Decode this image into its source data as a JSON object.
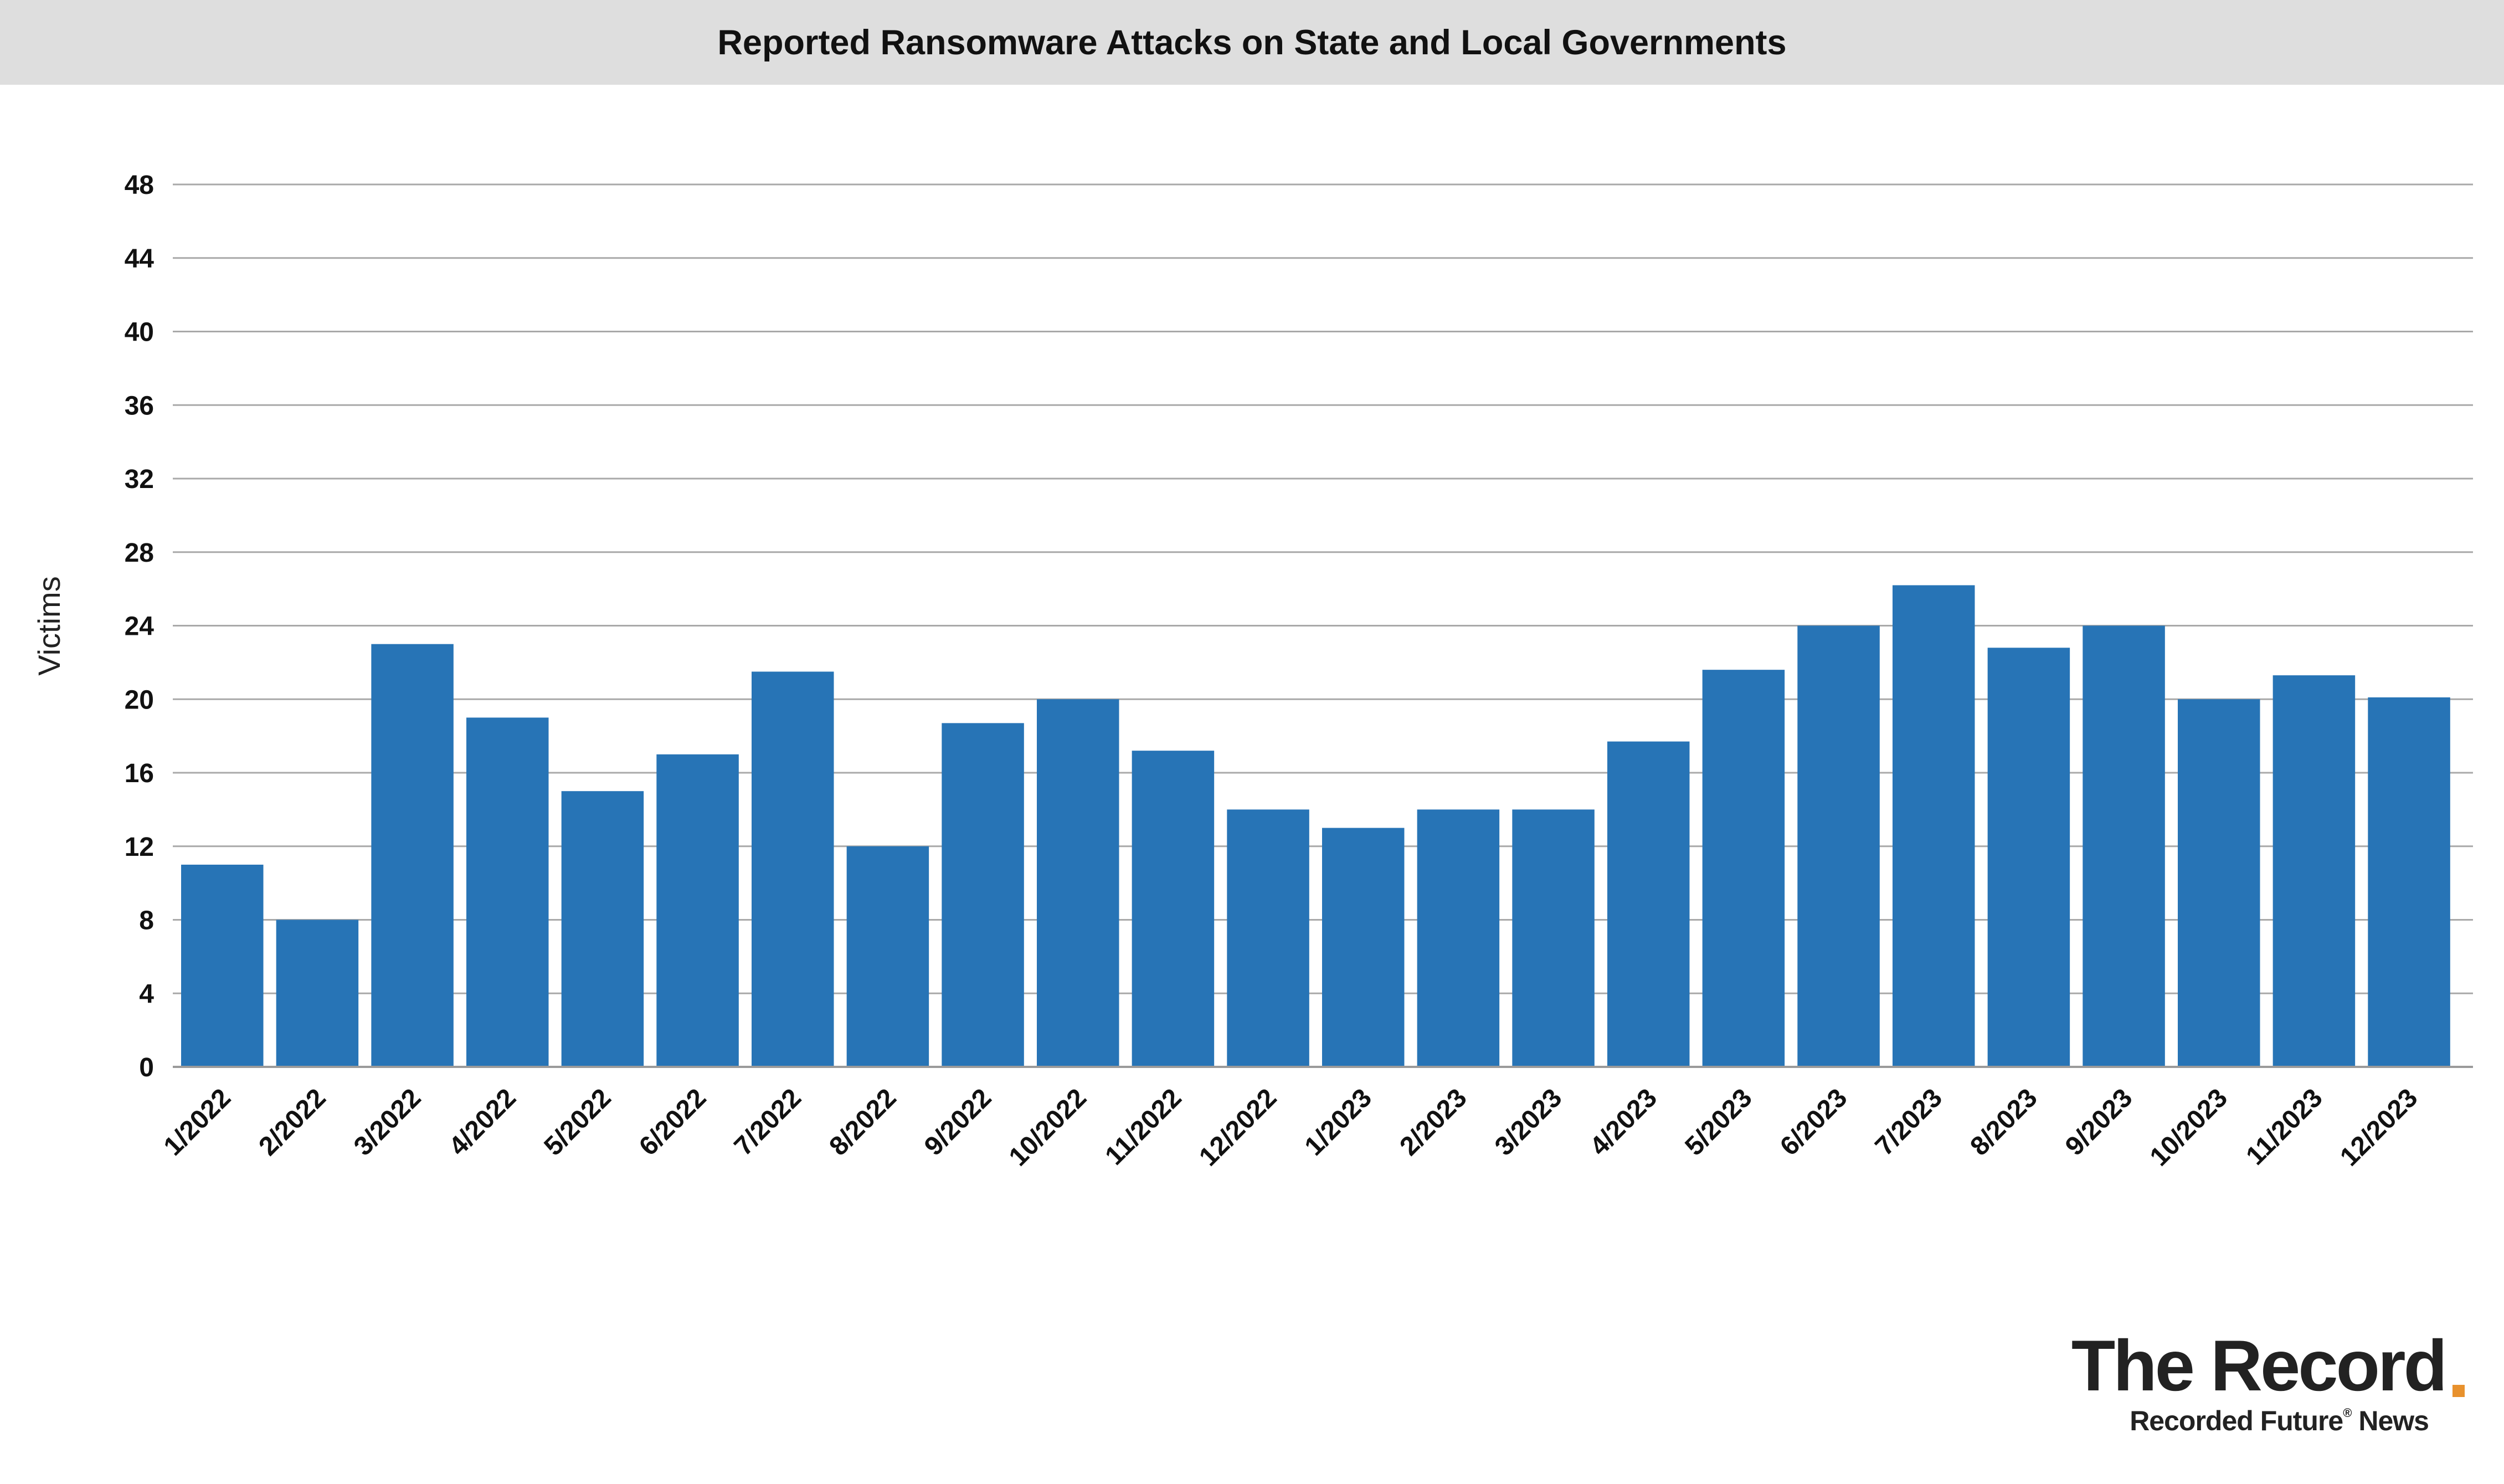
{
  "chart_data": {
    "type": "bar",
    "title": "Reported Ransomware Attacks on State and Local Governments",
    "xlabel": "",
    "ylabel": "Victims",
    "ylim": [
      0,
      48
    ],
    "yticks": [
      0,
      4,
      8,
      12,
      16,
      20,
      24,
      28,
      32,
      36,
      40,
      44,
      48
    ],
    "grid": true,
    "categories": [
      "1/2022",
      "2/2022",
      "3/2022",
      "4/2022",
      "5/2022",
      "6/2022",
      "7/2022",
      "8/2022",
      "9/2022",
      "10/2022",
      "11/2022",
      "12/2022",
      "1/2023",
      "2/2023",
      "3/2023",
      "4/2023",
      "5/2023",
      "6/2023",
      "7/2023",
      "8/2023",
      "9/2023",
      "10/2023",
      "11/2023",
      "12/2023"
    ],
    "values": [
      11,
      8,
      23,
      19,
      15,
      17,
      21.5,
      12,
      18.7,
      20,
      17.2,
      14,
      13,
      14,
      14,
      17.7,
      21.6,
      24,
      26.2,
      22.8,
      24,
      20,
      21.3,
      20.1
    ],
    "bar_color": "#2774b6",
    "grid_color": "#a9a9a9"
  },
  "brand": {
    "name": "The Record",
    "dot": ".",
    "sub": "Recorded Future",
    "sub_mark": "®",
    "sub_suffix": "News",
    "accent_color": "#e8912d"
  }
}
